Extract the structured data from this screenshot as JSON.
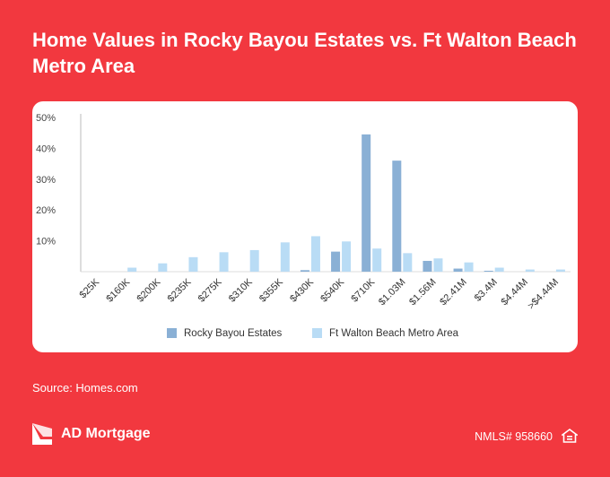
{
  "header": {
    "title": "Home Values in Rocky Bayou Estates vs. Ft Walton Beach Metro Area"
  },
  "footer": {
    "source": "Source: Homes.com",
    "brand": "AD Mortgage",
    "nmls": "NMLS# 958660"
  },
  "icons": {
    "logo": "ad-mortgage-logo-icon",
    "equal_housing": "equal-housing-icon"
  },
  "colors": {
    "background": "#f2383f",
    "series_rocky": "#8ab0d5",
    "series_ftwalton": "#b9dcf5"
  },
  "chart_data": {
    "type": "bar",
    "categories": [
      "$25K",
      "$160K",
      "$200K",
      "$235K",
      "$275K",
      "$310K",
      "$355K",
      "$430K",
      "$540K",
      "$710K",
      "$1.03M",
      "$1.56M",
      "$2.41M",
      "$3.4M",
      "$4.44M",
      ">$4.44M"
    ],
    "series": [
      {
        "name": "Rocky Bayou Estates",
        "color": "#8ab0d5",
        "values": [
          0,
          0,
          0,
          0,
          0,
          0,
          0,
          0.5,
          6.5,
          44.5,
          36,
          3.5,
          1,
          0.3,
          0,
          0
        ]
      },
      {
        "name": "Ft Walton Beach Metro Area",
        "color": "#b9dcf5",
        "values": [
          0,
          1.3,
          2.7,
          4.7,
          6.3,
          7,
          9.5,
          11.5,
          9.8,
          7.5,
          6,
          4.3,
          3,
          1.3,
          0.7,
          0.7
        ]
      }
    ],
    "yticks": [
      "50%",
      "40%",
      "30%",
      "20%",
      "10%"
    ],
    "ytick_values": [
      50,
      40,
      30,
      20,
      10
    ],
    "ylim": [
      0,
      50
    ],
    "grid": false,
    "legend": "bottom"
  }
}
